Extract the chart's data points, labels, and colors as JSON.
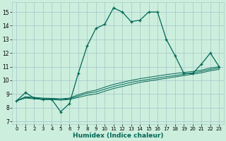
{
  "title": "",
  "xlabel": "Humidex (Indice chaleur)",
  "bg_color": "#cceedd",
  "grid_color": "#aacccc",
  "line_color": "#006655",
  "xlim": [
    -0.5,
    23.5
  ],
  "ylim": [
    6.8,
    15.7
  ],
  "xticks": [
    0,
    1,
    2,
    3,
    4,
    5,
    6,
    7,
    8,
    9,
    10,
    11,
    12,
    13,
    14,
    15,
    16,
    17,
    18,
    19,
    20,
    21,
    22,
    23
  ],
  "yticks": [
    7,
    8,
    9,
    10,
    11,
    12,
    13,
    14,
    15
  ],
  "main_x": [
    0,
    1,
    2,
    3,
    4,
    5,
    6,
    7,
    8,
    9,
    10,
    11,
    12,
    13,
    14,
    15,
    16,
    17,
    18,
    19,
    20,
    21,
    22,
    23
  ],
  "main_y": [
    8.5,
    9.1,
    8.7,
    8.6,
    8.6,
    7.7,
    8.3,
    10.5,
    12.5,
    13.8,
    14.1,
    15.3,
    15.0,
    14.3,
    14.4,
    15.0,
    15.0,
    13.0,
    11.8,
    10.5,
    10.5,
    11.2,
    12.0,
    11.0
  ],
  "trend1_x": [
    0,
    1,
    2,
    3,
    4,
    5,
    6,
    7,
    8,
    9,
    10,
    11,
    12,
    13,
    14,
    15,
    16,
    17,
    18,
    19,
    20,
    21,
    22,
    23
  ],
  "trend1_y": [
    8.5,
    8.7,
    8.65,
    8.6,
    8.6,
    8.55,
    8.6,
    8.75,
    8.9,
    9.0,
    9.2,
    9.4,
    9.55,
    9.7,
    9.85,
    9.95,
    10.05,
    10.15,
    10.25,
    10.35,
    10.45,
    10.55,
    10.7,
    10.8
  ],
  "trend2_x": [
    0,
    1,
    2,
    3,
    4,
    5,
    6,
    7,
    8,
    9,
    10,
    11,
    12,
    13,
    14,
    15,
    16,
    17,
    18,
    19,
    20,
    21,
    22,
    23
  ],
  "trend2_y": [
    8.5,
    8.75,
    8.7,
    8.65,
    8.65,
    8.6,
    8.65,
    8.85,
    9.05,
    9.15,
    9.35,
    9.55,
    9.7,
    9.85,
    9.97,
    10.07,
    10.17,
    10.27,
    10.35,
    10.45,
    10.55,
    10.65,
    10.8,
    10.9
  ],
  "trend3_x": [
    0,
    1,
    2,
    3,
    4,
    5,
    6,
    7,
    8,
    9,
    10,
    11,
    12,
    13,
    14,
    15,
    16,
    17,
    18,
    19,
    20,
    21,
    22,
    23
  ],
  "trend3_y": [
    8.5,
    8.8,
    8.75,
    8.7,
    8.68,
    8.65,
    8.7,
    8.95,
    9.15,
    9.28,
    9.5,
    9.7,
    9.85,
    10.0,
    10.12,
    10.22,
    10.32,
    10.42,
    10.5,
    10.58,
    10.65,
    10.75,
    10.9,
    11.0
  ]
}
